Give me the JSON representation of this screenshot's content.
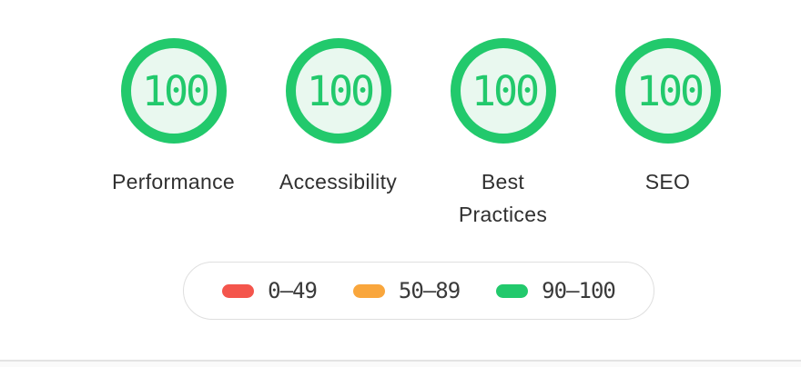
{
  "colors": {
    "pass_green": "#22c96c",
    "pass_fill": "#e9f8ef",
    "fail_red": "#f4554c",
    "average_orange": "#f9a63c",
    "label_text": "#303030",
    "legend_border": "#dfdfdf",
    "divider": "#e3e3e3"
  },
  "categories": [
    {
      "id": "performance",
      "label": "Performance",
      "score": "100"
    },
    {
      "id": "accessibility",
      "label": "Accessibility",
      "score": "100"
    },
    {
      "id": "best-practices",
      "label": "Best\nPractices",
      "score": "100"
    },
    {
      "id": "seo",
      "label": "SEO",
      "score": "100"
    }
  ],
  "legend": {
    "ranges": [
      {
        "id": "fail",
        "label": "0–49",
        "color": "#f4554c"
      },
      {
        "id": "average",
        "label": "50–89",
        "color": "#f9a63c"
      },
      {
        "id": "pass",
        "label": "90–100",
        "color": "#22c96c"
      }
    ]
  }
}
